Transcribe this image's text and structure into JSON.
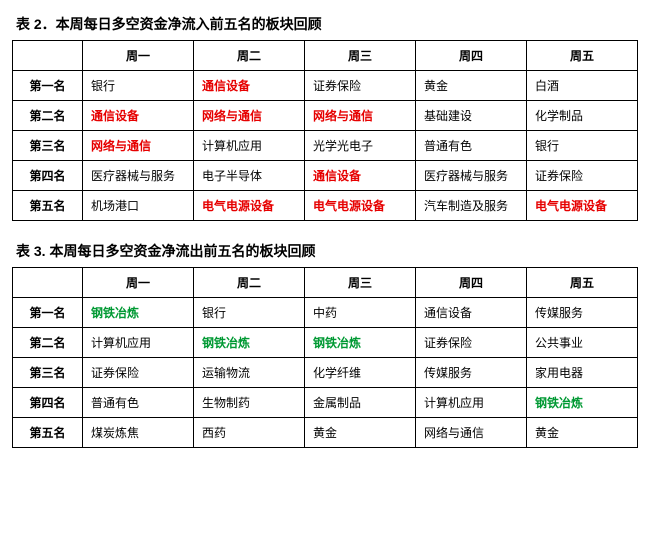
{
  "table1": {
    "title": "表 2．本周每日多空资金净流入前五名的板块回顾",
    "days": [
      "周一",
      "周二",
      "周三",
      "周四",
      "周五"
    ],
    "ranks": [
      "第一名",
      "第二名",
      "第三名",
      "第四名",
      "第五名"
    ],
    "highlight_color": "#e60000",
    "rows": [
      [
        {
          "text": "银行",
          "hl": false
        },
        {
          "text": "通信设备",
          "hl": true
        },
        {
          "text": "证券保险",
          "hl": false
        },
        {
          "text": "黄金",
          "hl": false
        },
        {
          "text": "白酒",
          "hl": false
        }
      ],
      [
        {
          "text": "通信设备",
          "hl": true
        },
        {
          "text": "网络与通信",
          "hl": true
        },
        {
          "text": "网络与通信",
          "hl": true
        },
        {
          "text": "基础建设",
          "hl": false
        },
        {
          "text": "化学制品",
          "hl": false
        }
      ],
      [
        {
          "text": "网络与通信",
          "hl": true
        },
        {
          "text": "计算机应用",
          "hl": false
        },
        {
          "text": "光学光电子",
          "hl": false
        },
        {
          "text": "普通有色",
          "hl": false
        },
        {
          "text": "银行",
          "hl": false
        }
      ],
      [
        {
          "text": "医疗器械与服务",
          "hl": false
        },
        {
          "text": "电子半导体",
          "hl": false
        },
        {
          "text": "通信设备",
          "hl": true
        },
        {
          "text": "医疗器械与服务",
          "hl": false
        },
        {
          "text": "证券保险",
          "hl": false
        }
      ],
      [
        {
          "text": "机场港口",
          "hl": false
        },
        {
          "text": "电气电源设备",
          "hl": true
        },
        {
          "text": "电气电源设备",
          "hl": true
        },
        {
          "text": "汽车制造及服务",
          "hl": false
        },
        {
          "text": "电气电源设备",
          "hl": true
        }
      ]
    ]
  },
  "table2": {
    "title": "表 3. 本周每日多空资金净流出前五名的板块回顾",
    "days": [
      "周一",
      "周二",
      "周三",
      "周四",
      "周五"
    ],
    "ranks": [
      "第一名",
      "第二名",
      "第三名",
      "第四名",
      "第五名"
    ],
    "highlight_color": "#009933",
    "rows": [
      [
        {
          "text": "钢铁冶炼",
          "hl": true
        },
        {
          "text": "银行",
          "hl": false
        },
        {
          "text": "中药",
          "hl": false
        },
        {
          "text": "通信设备",
          "hl": false
        },
        {
          "text": "传媒服务",
          "hl": false
        }
      ],
      [
        {
          "text": "计算机应用",
          "hl": false
        },
        {
          "text": "钢铁冶炼",
          "hl": true
        },
        {
          "text": "钢铁冶炼",
          "hl": true
        },
        {
          "text": "证券保险",
          "hl": false
        },
        {
          "text": "公共事业",
          "hl": false
        }
      ],
      [
        {
          "text": "证券保险",
          "hl": false
        },
        {
          "text": "运输物流",
          "hl": false
        },
        {
          "text": "化学纤维",
          "hl": false
        },
        {
          "text": "传媒服务",
          "hl": false
        },
        {
          "text": "家用电器",
          "hl": false
        }
      ],
      [
        {
          "text": "普通有色",
          "hl": false
        },
        {
          "text": "生物制药",
          "hl": false
        },
        {
          "text": "金属制品",
          "hl": false
        },
        {
          "text": "计算机应用",
          "hl": false
        },
        {
          "text": "钢铁冶炼",
          "hl": true
        }
      ],
      [
        {
          "text": "煤炭炼焦",
          "hl": false
        },
        {
          "text": "西药",
          "hl": false
        },
        {
          "text": "黄金",
          "hl": false
        },
        {
          "text": "网络与通信",
          "hl": false
        },
        {
          "text": "黄金",
          "hl": false
        }
      ]
    ]
  }
}
